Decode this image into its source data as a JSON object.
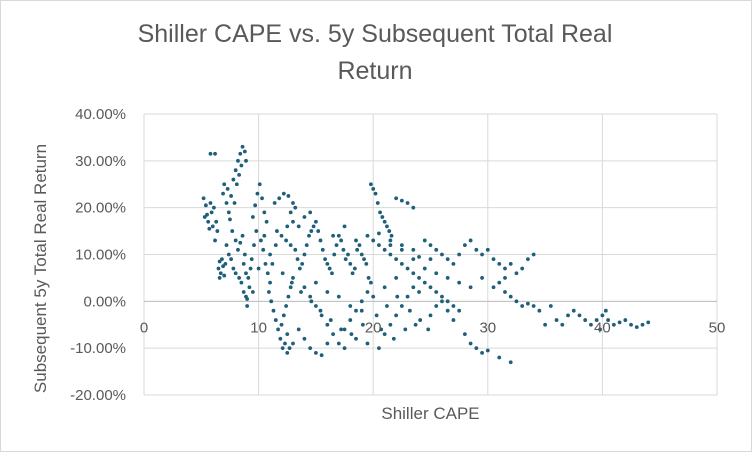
{
  "chart_data": {
    "type": "scatter",
    "title_lines": [
      "Shiller CAPE vs. 5y Subsequent Total Real",
      "Return"
    ],
    "xlabel": "Shiller CAPE",
    "ylabel": "Subsequent 5y Total Real Return",
    "xlim": [
      0,
      50
    ],
    "ylim": [
      -20,
      40
    ],
    "x_ticks": [
      0,
      10,
      20,
      30,
      40,
      50
    ],
    "x_tick_labels": [
      "0",
      "10",
      "20",
      "30",
      "40",
      "50"
    ],
    "y_ticks": [
      40,
      30,
      20,
      10,
      0,
      -10,
      -20
    ],
    "y_tick_labels": [
      "40.00%",
      "30.00%",
      "20.00%",
      "10.00%",
      "0.00%",
      "-10.00%",
      "-20.00%"
    ],
    "grid": true,
    "legend": "none",
    "marker_color": "#1f5f7a",
    "x_axis_crosses_at_y": 0,
    "series": [
      {
        "points": [
          [
            5.2,
            22
          ],
          [
            5.4,
            20.5
          ],
          [
            5.5,
            18.5
          ],
          [
            5.6,
            17
          ],
          [
            5.8,
            21
          ],
          [
            5.9,
            19
          ],
          [
            6.0,
            16
          ],
          [
            5.3,
            18
          ],
          [
            5.7,
            15.5
          ],
          [
            6.1,
            20
          ],
          [
            5.8,
            31.5
          ],
          [
            6.2,
            31.5
          ],
          [
            6.5,
            7
          ],
          [
            6.6,
            8.5
          ],
          [
            6.7,
            6
          ],
          [
            6.8,
            9
          ],
          [
            6.9,
            7.5
          ],
          [
            7.0,
            5.5
          ],
          [
            7.1,
            8
          ],
          [
            6.6,
            5
          ],
          [
            6.9,
            23
          ],
          [
            7.2,
            21
          ],
          [
            7.4,
            19
          ],
          [
            7.0,
            25
          ],
          [
            7.3,
            24
          ],
          [
            7.6,
            22.5
          ],
          [
            7.8,
            26
          ],
          [
            8.0,
            28
          ],
          [
            8.2,
            30
          ],
          [
            8.4,
            31.5
          ],
          [
            8.6,
            33
          ],
          [
            8.8,
            32
          ],
          [
            8.9,
            30
          ],
          [
            8.5,
            29
          ],
          [
            8.3,
            27
          ],
          [
            8.1,
            25
          ],
          [
            7.9,
            21
          ],
          [
            7.5,
            17.5
          ],
          [
            7.7,
            15
          ],
          [
            8.0,
            13
          ],
          [
            8.2,
            11
          ],
          [
            8.4,
            12.5
          ],
          [
            8.6,
            14
          ],
          [
            8.8,
            10
          ],
          [
            8.7,
            8
          ],
          [
            8.9,
            6
          ],
          [
            9.1,
            5
          ],
          [
            9.3,
            7
          ],
          [
            8.5,
            4
          ],
          [
            8.7,
            2
          ],
          [
            8.9,
            1
          ],
          [
            9.0,
            0.5
          ],
          [
            9.2,
            3
          ],
          [
            9.4,
            9
          ],
          [
            9.6,
            12
          ],
          [
            9.8,
            15
          ],
          [
            9.5,
            18
          ],
          [
            9.7,
            20.5
          ],
          [
            9.9,
            23
          ],
          [
            10.1,
            25
          ],
          [
            10.3,
            22
          ],
          [
            10.5,
            19
          ],
          [
            10.7,
            17
          ],
          [
            10.2,
            13
          ],
          [
            10.4,
            11
          ],
          [
            10.6,
            8
          ],
          [
            10.8,
            6
          ],
          [
            11.0,
            4
          ],
          [
            10.9,
            2
          ],
          [
            11.1,
            0
          ],
          [
            11.3,
            -2
          ],
          [
            11.5,
            -4
          ],
          [
            11.7,
            -6
          ],
          [
            11.9,
            -8
          ],
          [
            12.1,
            -10
          ],
          [
            12.3,
            -9
          ],
          [
            12.5,
            -7
          ],
          [
            12.0,
            -5
          ],
          [
            12.2,
            -3
          ],
          [
            12.4,
            -1
          ],
          [
            12.6,
            1
          ],
          [
            12.8,
            3
          ],
          [
            13.0,
            5
          ],
          [
            11.4,
            21
          ],
          [
            11.8,
            22
          ],
          [
            12.2,
            23
          ],
          [
            12.6,
            22.5
          ],
          [
            13.0,
            21
          ],
          [
            13.2,
            20
          ],
          [
            12.8,
            19
          ],
          [
            11.6,
            15
          ],
          [
            12.0,
            14
          ],
          [
            12.4,
            13
          ],
          [
            12.8,
            12
          ],
          [
            13.2,
            11
          ],
          [
            13.4,
            9
          ],
          [
            13.6,
            7
          ],
          [
            13.8,
            8
          ],
          [
            14.0,
            10
          ],
          [
            14.2,
            12
          ],
          [
            14.4,
            14
          ],
          [
            14.6,
            15
          ],
          [
            14.8,
            16
          ],
          [
            15.0,
            17
          ],
          [
            15.2,
            15
          ],
          [
            15.4,
            13
          ],
          [
            15.6,
            11
          ],
          [
            15.8,
            9
          ],
          [
            16.0,
            8
          ],
          [
            16.2,
            7
          ],
          [
            16.4,
            6
          ],
          [
            16.6,
            10
          ],
          [
            16.8,
            12
          ],
          [
            17.0,
            14
          ],
          [
            17.2,
            13
          ],
          [
            17.4,
            11
          ],
          [
            17.6,
            9
          ],
          [
            17.8,
            10
          ],
          [
            18.0,
            8
          ],
          [
            18.2,
            6
          ],
          [
            18.4,
            7
          ],
          [
            18.6,
            11
          ],
          [
            18.8,
            12
          ],
          [
            19.0,
            10
          ],
          [
            19.2,
            9
          ],
          [
            19.4,
            8
          ],
          [
            19.6,
            5
          ],
          [
            19.8,
            4
          ],
          [
            14.0,
            3
          ],
          [
            14.5,
            1
          ],
          [
            15.0,
            -1
          ],
          [
            15.5,
            -3
          ],
          [
            16.0,
            -5
          ],
          [
            16.5,
            -7
          ],
          [
            17.0,
            -9
          ],
          [
            17.5,
            -6
          ],
          [
            18.0,
            -4
          ],
          [
            18.5,
            -2
          ],
          [
            19.0,
            0
          ],
          [
            19.5,
            2
          ],
          [
            13.5,
            -6
          ],
          [
            14.0,
            -8
          ],
          [
            14.5,
            -10
          ],
          [
            15.0,
            -11
          ],
          [
            15.5,
            -11.5
          ],
          [
            16.0,
            -9
          ],
          [
            13.0,
            -9
          ],
          [
            12.7,
            -10
          ],
          [
            12.5,
            -11
          ],
          [
            17.5,
            -10
          ],
          [
            18.5,
            -8
          ],
          [
            19.5,
            -9
          ],
          [
            20.5,
            -10
          ],
          [
            21.0,
            -7
          ],
          [
            21.5,
            -5
          ],
          [
            22.0,
            -3
          ],
          [
            22.5,
            -1
          ],
          [
            23.0,
            1
          ],
          [
            23.5,
            3
          ],
          [
            24.0,
            2
          ],
          [
            19.8,
            25
          ],
          [
            20.0,
            24
          ],
          [
            20.2,
            23
          ],
          [
            20.4,
            21
          ],
          [
            20.6,
            19
          ],
          [
            20.8,
            18
          ],
          [
            21.0,
            17
          ],
          [
            21.2,
            16
          ],
          [
            21.4,
            15
          ],
          [
            21.6,
            14
          ],
          [
            22.0,
            22
          ],
          [
            22.5,
            21.5
          ],
          [
            23.0,
            21
          ],
          [
            23.5,
            20
          ],
          [
            20.0,
            13
          ],
          [
            20.5,
            12
          ],
          [
            21.0,
            11
          ],
          [
            21.5,
            10
          ],
          [
            22.0,
            9
          ],
          [
            22.5,
            8
          ],
          [
            23.0,
            7
          ],
          [
            23.5,
            6
          ],
          [
            24.0,
            5
          ],
          [
            24.5,
            4
          ],
          [
            25.0,
            3
          ],
          [
            25.5,
            2
          ],
          [
            26.0,
            1
          ],
          [
            26.5,
            0
          ],
          [
            27.0,
            -1
          ],
          [
            27.5,
            -2
          ],
          [
            24.5,
            13
          ],
          [
            25.0,
            12
          ],
          [
            25.5,
            11
          ],
          [
            26.0,
            10
          ],
          [
            26.5,
            9
          ],
          [
            27.0,
            8
          ],
          [
            27.5,
            10
          ],
          [
            28.0,
            12
          ],
          [
            28.5,
            13
          ],
          [
            29.0,
            11
          ],
          [
            29.5,
            10
          ],
          [
            30.0,
            11
          ],
          [
            30.5,
            9
          ],
          [
            31.0,
            8
          ],
          [
            31.5,
            7
          ],
          [
            32.0,
            8
          ],
          [
            32.5,
            6
          ],
          [
            33.0,
            7
          ],
          [
            33.5,
            9
          ],
          [
            34.0,
            10
          ],
          [
            25.0,
            -3
          ],
          [
            25.5,
            -1
          ],
          [
            26.0,
            0
          ],
          [
            26.5,
            -2
          ],
          [
            27.0,
            -4
          ],
          [
            28.0,
            -7
          ],
          [
            28.5,
            -9
          ],
          [
            29.0,
            -10
          ],
          [
            29.5,
            -11
          ],
          [
            30.0,
            -10.5
          ],
          [
            31.0,
            -12
          ],
          [
            32.0,
            -13
          ],
          [
            31.5,
            2
          ],
          [
            32.0,
            1
          ],
          [
            32.5,
            0
          ],
          [
            33.0,
            -1
          ],
          [
            33.5,
            -0.5
          ],
          [
            34.0,
            -1
          ],
          [
            34.5,
            -2
          ],
          [
            35.5,
            -1
          ],
          [
            36.0,
            -4
          ],
          [
            36.5,
            -5
          ],
          [
            37.0,
            -3
          ],
          [
            37.5,
            -2
          ],
          [
            38.0,
            -3
          ],
          [
            38.5,
            -4
          ],
          [
            39.0,
            -5
          ],
          [
            39.5,
            -4
          ],
          [
            40.0,
            -3
          ],
          [
            40.5,
            -4
          ],
          [
            41.0,
            -5
          ],
          [
            41.5,
            -4.5
          ],
          [
            42.0,
            -4
          ],
          [
            42.5,
            -5
          ],
          [
            43.0,
            -5.5
          ],
          [
            43.5,
            -5
          ],
          [
            44.0,
            -4.5
          ],
          [
            40.3,
            -2
          ],
          [
            39.8,
            -6
          ],
          [
            35.0,
            -5
          ],
          [
            30.5,
            3
          ],
          [
            31.0,
            4
          ],
          [
            31.5,
            5
          ],
          [
            29.5,
            5
          ],
          [
            28.5,
            3
          ],
          [
            27.5,
            4
          ],
          [
            26.5,
            5
          ],
          [
            25.5,
            6
          ],
          [
            24.5,
            7
          ],
          [
            23.5,
            9
          ],
          [
            22.5,
            11
          ],
          [
            21.5,
            12
          ],
          [
            22.0,
            5
          ],
          [
            21.0,
            3
          ],
          [
            20.0,
            1
          ],
          [
            19.0,
            -2
          ],
          [
            18.0,
            -1
          ],
          [
            17.0,
            1
          ],
          [
            16.0,
            2
          ],
          [
            15.0,
            4
          ],
          [
            13.5,
            16
          ],
          [
            14.0,
            18
          ],
          [
            14.5,
            19
          ],
          [
            13.0,
            17
          ],
          [
            12.5,
            16
          ],
          [
            11.5,
            12
          ],
          [
            11.0,
            10
          ],
          [
            10.5,
            14
          ],
          [
            9.5,
            2
          ],
          [
            9.0,
            -1
          ],
          [
            16.5,
            14
          ],
          [
            17.5,
            16
          ],
          [
            18.5,
            13
          ],
          [
            19.5,
            14
          ],
          [
            20.5,
            14.5
          ],
          [
            21.5,
            13
          ],
          [
            22.5,
            12
          ],
          [
            23.5,
            11
          ],
          [
            24.0,
            9.5
          ],
          [
            25.0,
            9
          ],
          [
            6.3,
            17
          ],
          [
            6.4,
            15
          ],
          [
            6.2,
            13
          ],
          [
            7.2,
            12
          ],
          [
            7.4,
            10
          ],
          [
            7.6,
            9
          ],
          [
            7.8,
            7
          ],
          [
            8.0,
            6
          ],
          [
            8.3,
            5
          ],
          [
            10.0,
            7
          ],
          [
            11.2,
            8
          ],
          [
            12.1,
            6
          ],
          [
            12.9,
            4
          ],
          [
            13.7,
            2
          ],
          [
            14.6,
            0
          ],
          [
            15.4,
            -2
          ],
          [
            16.3,
            -4
          ],
          [
            17.2,
            -6
          ],
          [
            18.1,
            -7
          ],
          [
            19.1,
            -5
          ],
          [
            20.3,
            -3
          ],
          [
            21.2,
            -1
          ],
          [
            22.1,
            1
          ],
          [
            23.2,
            -2
          ],
          [
            24.1,
            -4
          ],
          [
            24.8,
            -6
          ],
          [
            23.7,
            -5
          ],
          [
            22.8,
            -6
          ],
          [
            21.8,
            -8
          ],
          [
            20.7,
            -6
          ]
        ]
      }
    ]
  }
}
